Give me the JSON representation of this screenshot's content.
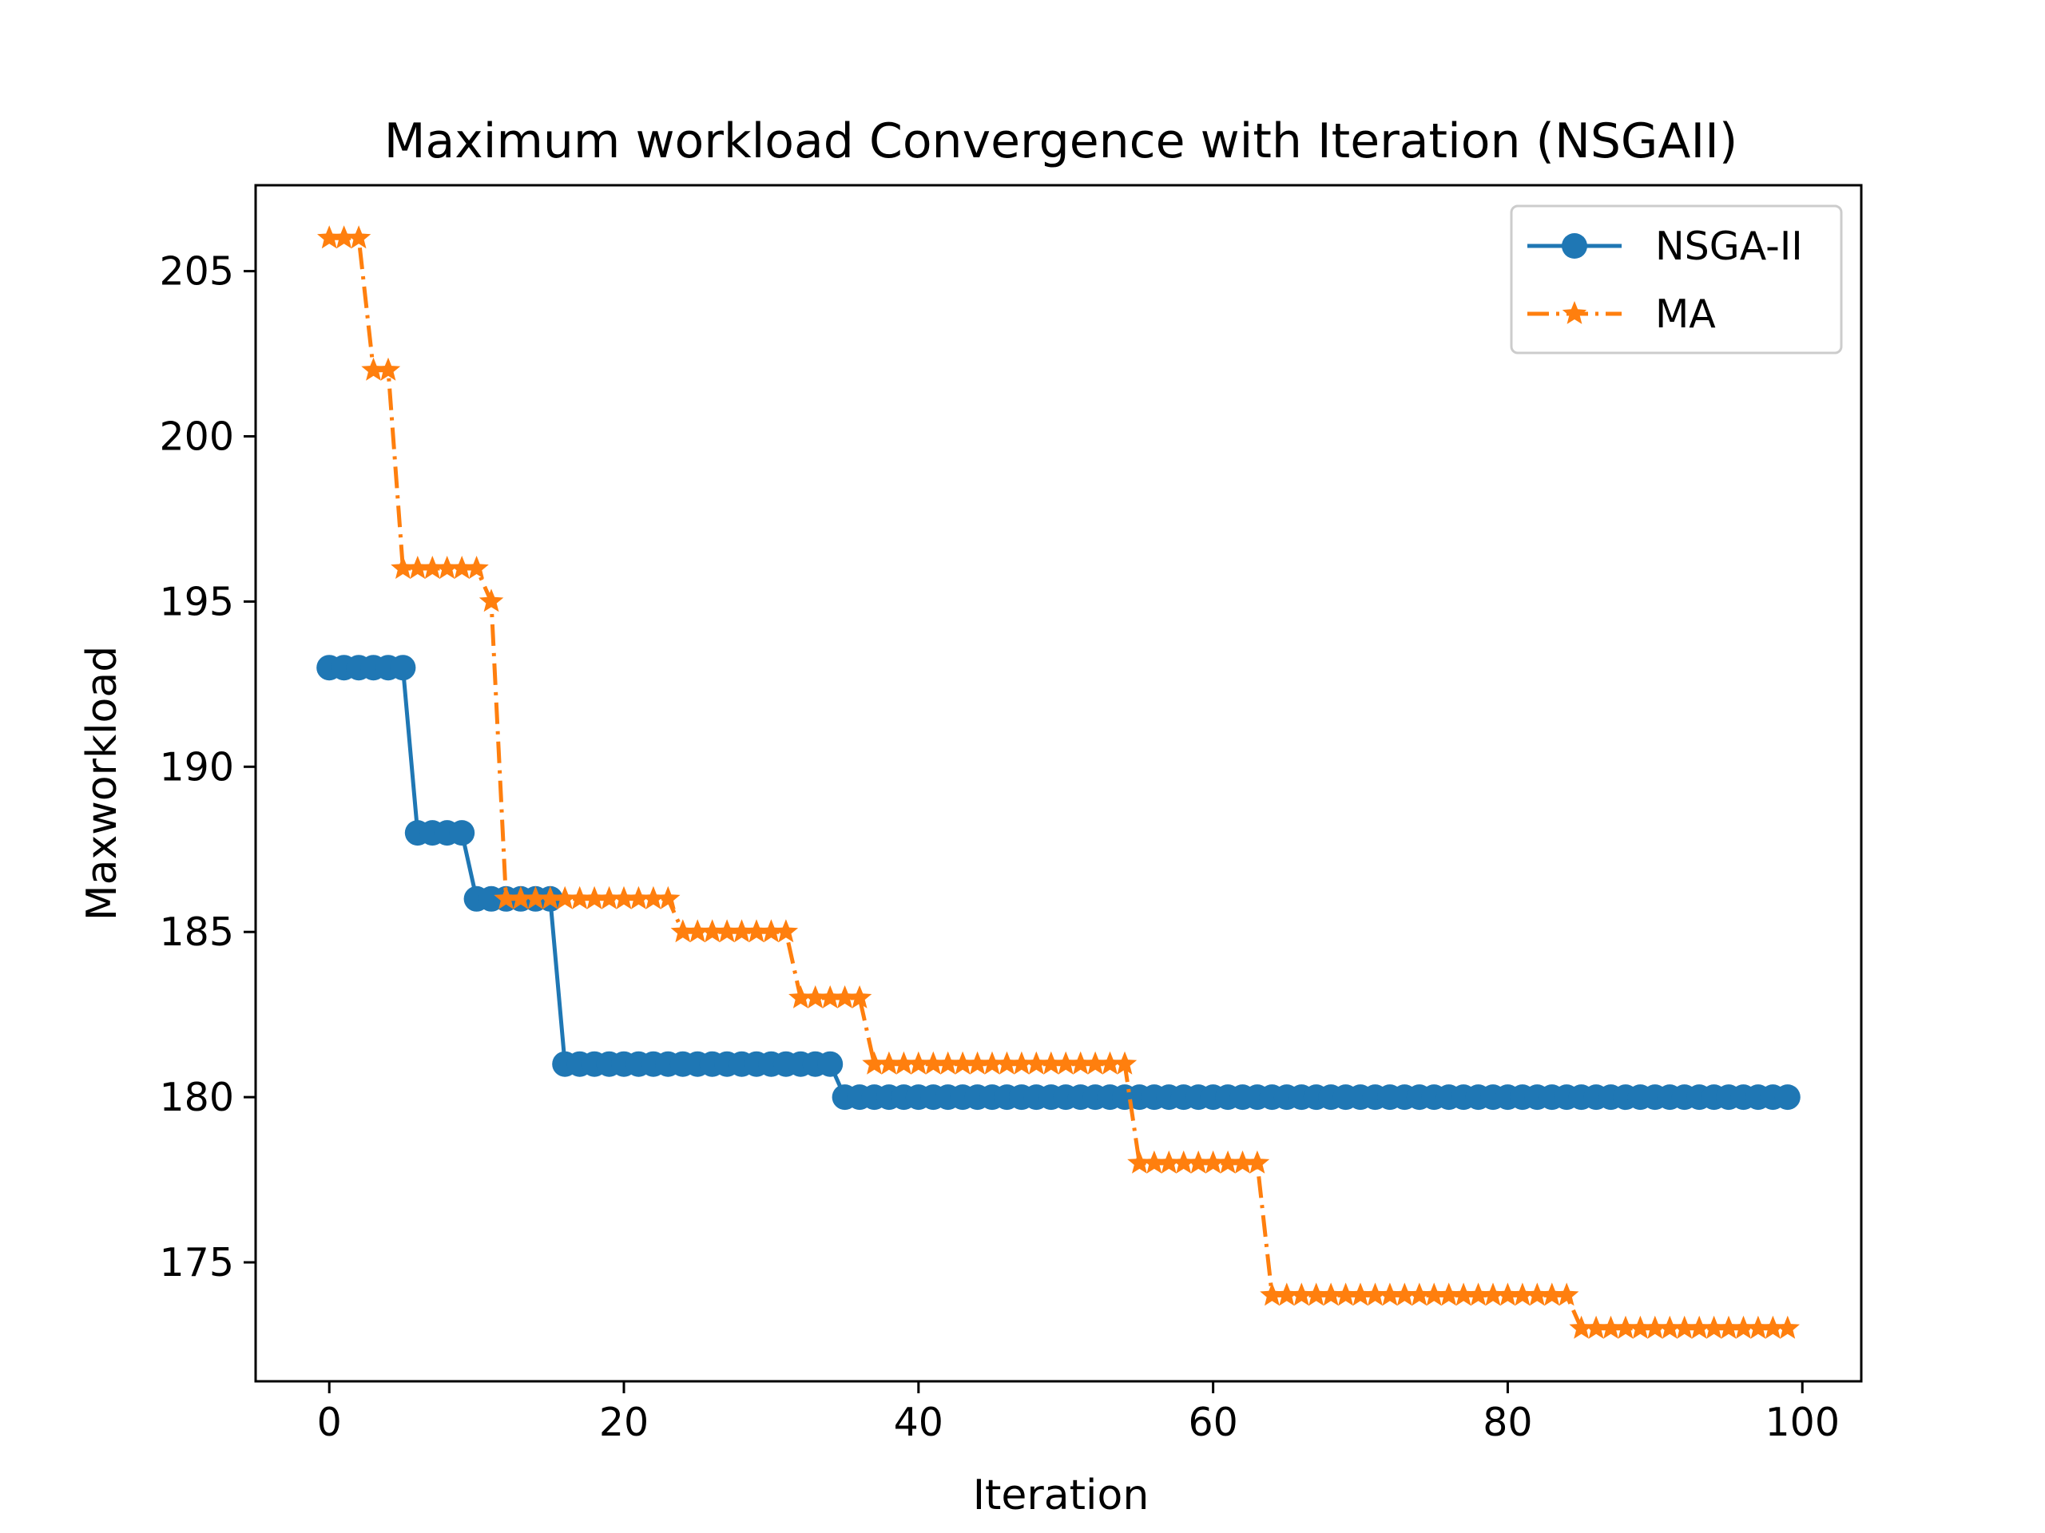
{
  "chart_data": {
    "type": "line",
    "title": "Maximum workload Convergence with Iteration (NSGAII)",
    "xlabel": "Iteration",
    "ylabel": "Maxworkload",
    "xlim": [
      -5,
      104
    ],
    "ylim": [
      171.4,
      207.6
    ],
    "x_ticks": [
      0,
      20,
      40,
      60,
      80,
      100
    ],
    "y_ticks": [
      175,
      180,
      185,
      190,
      195,
      200,
      205
    ],
    "grid": false,
    "legend_position": "top-right",
    "x": [
      0,
      1,
      2,
      3,
      4,
      5,
      6,
      7,
      8,
      9,
      10,
      11,
      12,
      13,
      14,
      15,
      16,
      17,
      18,
      19,
      20,
      21,
      22,
      23,
      24,
      25,
      26,
      27,
      28,
      29,
      30,
      31,
      32,
      33,
      34,
      35,
      36,
      37,
      38,
      39,
      40,
      41,
      42,
      43,
      44,
      45,
      46,
      47,
      48,
      49,
      50,
      51,
      52,
      53,
      54,
      55,
      56,
      57,
      58,
      59,
      60,
      61,
      62,
      63,
      64,
      65,
      66,
      67,
      68,
      69,
      70,
      71,
      72,
      73,
      74,
      75,
      76,
      77,
      78,
      79,
      80,
      81,
      82,
      83,
      84,
      85,
      86,
      87,
      88,
      89,
      90,
      91,
      92,
      93,
      94,
      95,
      96,
      97,
      98,
      99
    ],
    "series": [
      {
        "name": "NSGA-II",
        "color": "#1f77b4",
        "line_style": "solid",
        "marker": "circle",
        "values": [
          193,
          193,
          193,
          193,
          193,
          193,
          188,
          188,
          188,
          188,
          186,
          186,
          186,
          186,
          186,
          186,
          181,
          181,
          181,
          181,
          181,
          181,
          181,
          181,
          181,
          181,
          181,
          181,
          181,
          181,
          181,
          181,
          181,
          181,
          181,
          180,
          180,
          180,
          180,
          180,
          180,
          180,
          180,
          180,
          180,
          180,
          180,
          180,
          180,
          180,
          180,
          180,
          180,
          180,
          180,
          180,
          180,
          180,
          180,
          180,
          180,
          180,
          180,
          180,
          180,
          180,
          180,
          180,
          180,
          180,
          180,
          180,
          180,
          180,
          180,
          180,
          180,
          180,
          180,
          180,
          180,
          180,
          180,
          180,
          180,
          180,
          180,
          180,
          180,
          180,
          180,
          180,
          180,
          180,
          180,
          180,
          180,
          180,
          180,
          180
        ]
      },
      {
        "name": "MA",
        "color": "#ff7f0e",
        "line_style": "dashdot",
        "marker": "star",
        "values": [
          206,
          206,
          206,
          202,
          202,
          196,
          196,
          196,
          196,
          196,
          196,
          195,
          186,
          186,
          186,
          186,
          186,
          186,
          186,
          186,
          186,
          186,
          186,
          186,
          185,
          185,
          185,
          185,
          185,
          185,
          185,
          185,
          183,
          183,
          183,
          183,
          183,
          181,
          181,
          181,
          181,
          181,
          181,
          181,
          181,
          181,
          181,
          181,
          181,
          181,
          181,
          181,
          181,
          181,
          181,
          178,
          178,
          178,
          178,
          178,
          178,
          178,
          178,
          178,
          174,
          174,
          174,
          174,
          174,
          174,
          174,
          174,
          174,
          174,
          174,
          174,
          174,
          174,
          174,
          174,
          174,
          174,
          174,
          174,
          174,
          173,
          173,
          173,
          173,
          173,
          173,
          173,
          173,
          173,
          173,
          173,
          173,
          173,
          173,
          173
        ]
      }
    ]
  }
}
